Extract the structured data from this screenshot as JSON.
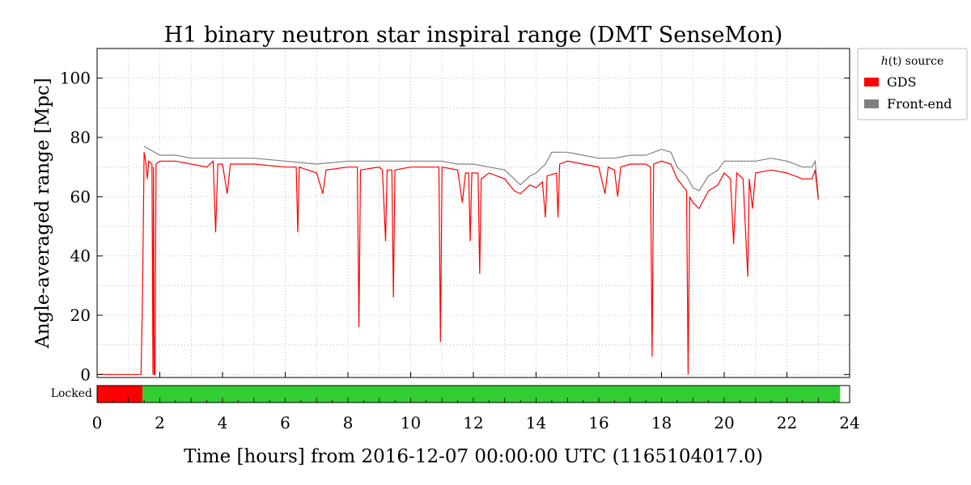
{
  "chart_data": {
    "type": "line",
    "title": "H1 binary neutron star inspiral range (DMT SenseMon)",
    "xlabel": "Time [hours] from 2016-12-07 00:00:00 UTC (1165104017.0)",
    "ylabel": "Angle-averaged range [Mpc]",
    "xlim": [
      0,
      24
    ],
    "ylim": [
      -1,
      110
    ],
    "x_ticks": [
      "0",
      "2",
      "4",
      "6",
      "8",
      "10",
      "12",
      "14",
      "16",
      "18",
      "20",
      "22",
      "24"
    ],
    "y_ticks": [
      "0",
      "20",
      "40",
      "60",
      "80",
      "100"
    ],
    "grid": true,
    "legend": {
      "title_pre": "h",
      "title_var": "(t)",
      "title_post": " source",
      "placement": "outside-right",
      "entries": [
        {
          "name": "GDS",
          "color": "#ff0000"
        },
        {
          "name": "Front-end",
          "color": "#808080"
        }
      ]
    },
    "series": [
      {
        "name": "GDS",
        "color": "#ff0000",
        "points": [
          [
            0.0,
            0
          ],
          [
            1.4,
            0
          ],
          [
            1.45,
            28
          ],
          [
            1.5,
            75
          ],
          [
            1.55,
            72
          ],
          [
            1.6,
            66
          ],
          [
            1.65,
            72
          ],
          [
            1.75,
            71
          ],
          [
            1.78,
            0
          ],
          [
            1.8,
            70
          ],
          [
            1.82,
            0
          ],
          [
            1.85,
            0
          ],
          [
            1.88,
            71
          ],
          [
            2.0,
            72
          ],
          [
            2.5,
            72
          ],
          [
            3.0,
            71
          ],
          [
            3.5,
            70
          ],
          [
            3.7,
            72
          ],
          [
            3.78,
            48
          ],
          [
            3.85,
            71
          ],
          [
            4.0,
            71
          ],
          [
            4.15,
            61
          ],
          [
            4.25,
            71
          ],
          [
            5.0,
            71
          ],
          [
            6.0,
            70
          ],
          [
            6.35,
            70
          ],
          [
            6.4,
            48
          ],
          [
            6.45,
            70
          ],
          [
            7.0,
            68
          ],
          [
            7.2,
            61
          ],
          [
            7.3,
            69
          ],
          [
            8.0,
            70
          ],
          [
            8.3,
            70
          ],
          [
            8.35,
            16
          ],
          [
            8.4,
            69
          ],
          [
            9.0,
            70
          ],
          [
            9.1,
            69
          ],
          [
            9.2,
            45
          ],
          [
            9.25,
            69
          ],
          [
            9.4,
            69
          ],
          [
            9.45,
            26
          ],
          [
            9.5,
            69
          ],
          [
            10.0,
            70
          ],
          [
            10.5,
            70
          ],
          [
            10.9,
            70
          ],
          [
            10.95,
            11
          ],
          [
            11.0,
            70
          ],
          [
            11.5,
            69
          ],
          [
            11.65,
            58
          ],
          [
            11.75,
            68
          ],
          [
            11.85,
            68
          ],
          [
            11.9,
            45
          ],
          [
            11.95,
            68
          ],
          [
            12.15,
            68
          ],
          [
            12.2,
            34
          ],
          [
            12.25,
            66
          ],
          [
            12.5,
            68
          ],
          [
            13.0,
            66
          ],
          [
            13.3,
            62
          ],
          [
            13.5,
            61
          ],
          [
            13.8,
            64
          ],
          [
            14.0,
            63
          ],
          [
            14.2,
            65
          ],
          [
            14.3,
            53
          ],
          [
            14.35,
            67
          ],
          [
            14.65,
            68
          ],
          [
            14.7,
            53
          ],
          [
            14.75,
            71
          ],
          [
            15.0,
            72
          ],
          [
            15.5,
            71
          ],
          [
            16.0,
            70
          ],
          [
            16.2,
            61
          ],
          [
            16.3,
            70
          ],
          [
            16.5,
            69
          ],
          [
            16.6,
            60
          ],
          [
            16.7,
            70
          ],
          [
            17.0,
            71
          ],
          [
            17.5,
            71
          ],
          [
            17.65,
            70
          ],
          [
            17.7,
            6
          ],
          [
            17.75,
            71
          ],
          [
            18.0,
            72
          ],
          [
            18.3,
            71
          ],
          [
            18.5,
            66
          ],
          [
            18.8,
            62
          ],
          [
            18.85,
            0
          ],
          [
            18.9,
            60
          ],
          [
            19.0,
            58
          ],
          [
            19.2,
            56
          ],
          [
            19.5,
            62
          ],
          [
            19.8,
            64
          ],
          [
            20.0,
            68
          ],
          [
            20.2,
            66
          ],
          [
            20.3,
            44
          ],
          [
            20.4,
            68
          ],
          [
            20.6,
            66
          ],
          [
            20.75,
            33
          ],
          [
            20.8,
            66
          ],
          [
            20.9,
            56
          ],
          [
            21.0,
            68
          ],
          [
            21.5,
            69
          ],
          [
            22.0,
            68
          ],
          [
            22.5,
            66
          ],
          [
            22.8,
            66
          ],
          [
            22.9,
            69
          ],
          [
            23.0,
            59
          ]
        ]
      },
      {
        "name": "Front-end",
        "color": "#808080",
        "points": [
          [
            1.5,
            77
          ],
          [
            2.0,
            74
          ],
          [
            2.5,
            74
          ],
          [
            3.0,
            73
          ],
          [
            3.5,
            73
          ],
          [
            4.0,
            73
          ],
          [
            5.0,
            73
          ],
          [
            6.0,
            72
          ],
          [
            7.0,
            71
          ],
          [
            8.0,
            72
          ],
          [
            9.0,
            72
          ],
          [
            10.0,
            72
          ],
          [
            11.0,
            72
          ],
          [
            11.5,
            71
          ],
          [
            12.0,
            71
          ],
          [
            12.5,
            70
          ],
          [
            13.0,
            69
          ],
          [
            13.3,
            66
          ],
          [
            13.5,
            64
          ],
          [
            13.8,
            67
          ],
          [
            14.0,
            68
          ],
          [
            14.3,
            71
          ],
          [
            14.5,
            75
          ],
          [
            15.0,
            75
          ],
          [
            15.5,
            74
          ],
          [
            16.0,
            73
          ],
          [
            16.5,
            73
          ],
          [
            17.0,
            74
          ],
          [
            17.5,
            74
          ],
          [
            18.0,
            76
          ],
          [
            18.3,
            75
          ],
          [
            18.5,
            70
          ],
          [
            18.8,
            67
          ],
          [
            19.0,
            63
          ],
          [
            19.2,
            62
          ],
          [
            19.5,
            67
          ],
          [
            19.8,
            69
          ],
          [
            20.0,
            72
          ],
          [
            20.5,
            72
          ],
          [
            21.0,
            72
          ],
          [
            21.5,
            73
          ],
          [
            22.0,
            72
          ],
          [
            22.5,
            70
          ],
          [
            22.8,
            70
          ],
          [
            22.9,
            72
          ],
          [
            23.0,
            60
          ]
        ]
      }
    ],
    "state_bar": {
      "label": "Locked",
      "segments": [
        {
          "start": 0,
          "end": 1.45,
          "color": "#ff0000"
        },
        {
          "start": 1.45,
          "end": 23.7,
          "color": "#33cc33"
        },
        {
          "start": 23.7,
          "end": 24,
          "color": "#ffffff"
        }
      ]
    }
  }
}
